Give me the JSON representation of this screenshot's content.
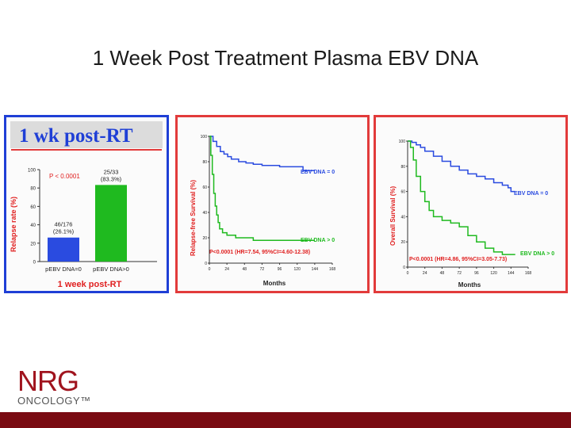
{
  "slide": {
    "title": "1 Week Post Treatment Plasma EBV DNA"
  },
  "logo": {
    "main": "NRG",
    "sub": "ONCOLOGY™"
  },
  "colors": {
    "blue": "#2a4be0",
    "green": "#1fba1f",
    "red": "#e02020",
    "accent_red": "#e23b3b",
    "brand": "#a0141e"
  },
  "chart_data": [
    {
      "type": "bar",
      "banner": "1 wk post-RT",
      "categories": [
        "pEBV DNA=0",
        "pEBV DNA>0"
      ],
      "values": [
        26.1,
        83.3
      ],
      "data_labels": [
        [
          "46/176",
          "(26.1%)"
        ],
        [
          "25/33",
          "(83.3%)"
        ]
      ],
      "ylabel": "Relapse rate (%)",
      "ylim": [
        0,
        100
      ],
      "yticks": [
        "0",
        "20",
        "40",
        "60",
        "80",
        "100"
      ],
      "p_value": "P < 0.0001",
      "xlabel": "1 week post-RT"
    },
    {
      "type": "line",
      "ylabel": "Relapse-free Survival (%)",
      "xlabel": "Months",
      "xlim": [
        0,
        168
      ],
      "ylim": [
        0,
        100
      ],
      "xticks": [
        "0",
        "24",
        "48",
        "72",
        "96",
        "120",
        "144",
        "168"
      ],
      "yticks": [
        "0",
        "20",
        "40",
        "60",
        "80",
        "100"
      ],
      "annotation": "P<0.0001 (HR=7.54, 95%CI=4.60-12.38)",
      "series": [
        {
          "name": "EBV DNA = 0",
          "x": [
            0,
            5,
            10,
            15,
            20,
            25,
            30,
            40,
            50,
            60,
            72,
            84,
            96,
            110,
            120,
            128,
            135,
            144
          ],
          "y": [
            100,
            96,
            92,
            88,
            86,
            84,
            82,
            80,
            79,
            78,
            77,
            77,
            76,
            76,
            76,
            73,
            73,
            73
          ]
        },
        {
          "name": "EBV DNA > 0",
          "x": [
            0,
            2,
            4,
            6,
            8,
            10,
            12,
            14,
            18,
            24,
            36,
            48,
            60,
            72,
            84,
            96,
            108,
            120,
            132,
            144
          ],
          "y": [
            100,
            85,
            70,
            55,
            45,
            38,
            32,
            27,
            24,
            22,
            20,
            20,
            18,
            18,
            18,
            18,
            18,
            18,
            18,
            18
          ]
        }
      ]
    },
    {
      "type": "line",
      "ylabel": "Overall Survival (%)",
      "xlabel": "Months",
      "xlim": [
        0,
        168
      ],
      "ylim": [
        0,
        100
      ],
      "xticks": [
        "0",
        "24",
        "48",
        "72",
        "96",
        "120",
        "144",
        "168"
      ],
      "yticks": [
        "0",
        "20",
        "40",
        "60",
        "80",
        "100"
      ],
      "annotation": "P<0.0001 (HR=4.86, 95%CI=3.05-7.73)",
      "series": [
        {
          "name": "EBV DNA = 0",
          "x": [
            0,
            6,
            12,
            18,
            24,
            36,
            48,
            60,
            72,
            84,
            96,
            108,
            120,
            132,
            140,
            144,
            150
          ],
          "y": [
            100,
            99,
            97,
            95,
            92,
            88,
            84,
            80,
            77,
            74,
            72,
            70,
            67,
            65,
            63,
            60,
            60
          ]
        },
        {
          "name": "EBV DNA > 0",
          "x": [
            0,
            4,
            8,
            12,
            18,
            24,
            30,
            36,
            48,
            60,
            72,
            84,
            96,
            108,
            120,
            132,
            144,
            150
          ],
          "y": [
            100,
            95,
            85,
            72,
            60,
            52,
            45,
            40,
            37,
            35,
            32,
            25,
            20,
            15,
            12,
            10,
            10,
            10
          ]
        }
      ]
    }
  ]
}
